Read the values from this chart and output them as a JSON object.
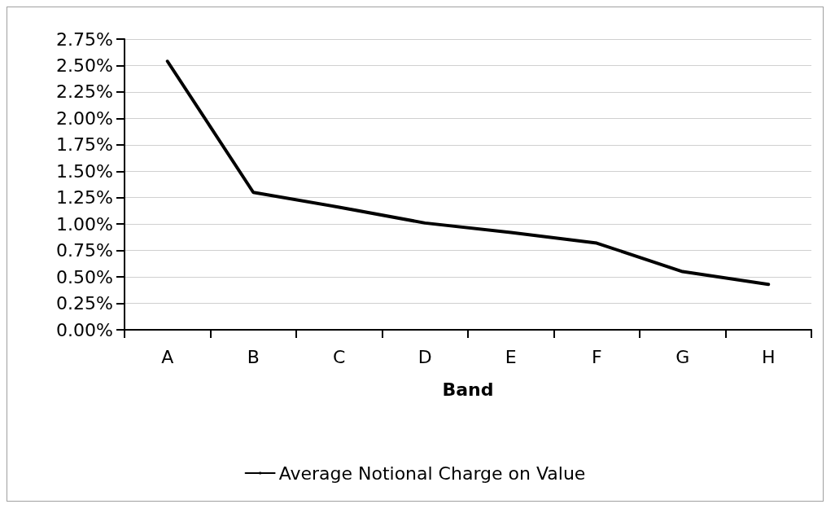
{
  "chart_data": {
    "type": "line",
    "xlabel": "Band",
    "categories": [
      "A",
      "B",
      "C",
      "D",
      "E",
      "F",
      "G",
      "H"
    ],
    "series": [
      {
        "name": "Average Notional Charge on Value",
        "color": "#000000",
        "values": [
          2.54,
          1.3,
          1.16,
          1.01,
          0.92,
          0.82,
          0.55,
          0.43
        ]
      }
    ],
    "ylim": [
      0,
      2.75
    ],
    "yticks": [
      {
        "value": 0,
        "label": "0.00%"
      },
      {
        "value": 0.25,
        "label": "0.25%"
      },
      {
        "value": 0.5,
        "label": "0.50%"
      },
      {
        "value": 0.75,
        "label": "0.75%"
      },
      {
        "value": 1,
        "label": "1.00%"
      },
      {
        "value": 1.25,
        "label": "1.25%"
      },
      {
        "value": 1.5,
        "label": "1.50%"
      },
      {
        "value": 1.75,
        "label": "1.75%"
      },
      {
        "value": 2,
        "label": "2.00%"
      },
      {
        "value": 2.25,
        "label": "2.25%"
      },
      {
        "value": 2.5,
        "label": "2.50%"
      },
      {
        "value": 2.75,
        "label": "2.75%"
      }
    ],
    "grid": "y",
    "legend": "bottom",
    "marker": "none",
    "line_style": "solid"
  }
}
